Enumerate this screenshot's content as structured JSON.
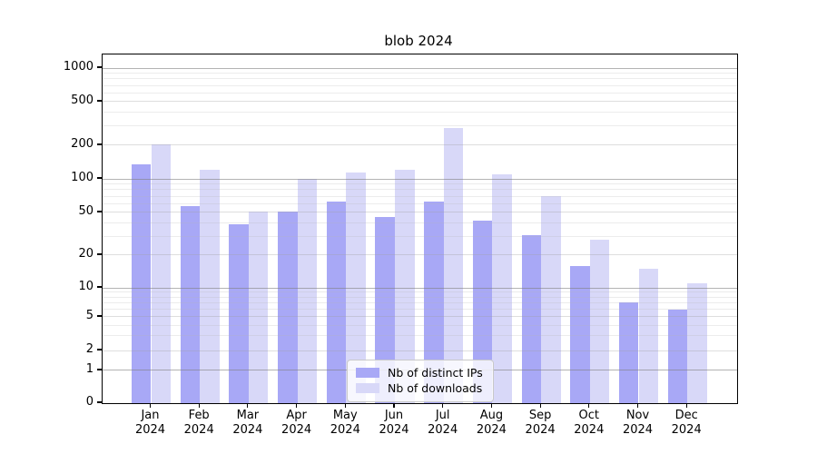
{
  "title": "blob 2024",
  "chart_data": {
    "type": "bar",
    "title": "blob 2024",
    "categories": [
      "Jan",
      "Feb",
      "Mar",
      "Apr",
      "May",
      "Jun",
      "Jul",
      "Aug",
      "Sep",
      "Oct",
      "Nov",
      "Dec"
    ],
    "year_label": "2024",
    "series": [
      {
        "name": "Nb of distinct IPs",
        "color": "#a8a8f6",
        "values": [
          135,
          57,
          39,
          51,
          63,
          45,
          63,
          42,
          31,
          16,
          7,
          6
        ]
      },
      {
        "name": "Nb of downloads",
        "color": "#d8d8f8",
        "values": [
          205,
          120,
          51,
          100,
          115,
          120,
          290,
          110,
          70,
          28,
          15,
          11
        ]
      }
    ],
    "yscale": "log-with-zero",
    "y_ticks": [
      0,
      1,
      2,
      5,
      10,
      20,
      50,
      100,
      200,
      500,
      1000
    ],
    "y_minor_gridlines": [
      3,
      4,
      6,
      7,
      8,
      9,
      30,
      40,
      60,
      70,
      80,
      90,
      300,
      400,
      600,
      700,
      800,
      900
    ],
    "ylim": [
      0,
      1260
    ],
    "grid": true,
    "legend_position": "lower center"
  },
  "legend": {
    "items": [
      {
        "label": "Nb of distinct IPs"
      },
      {
        "label": "Nb of downloads"
      }
    ]
  }
}
